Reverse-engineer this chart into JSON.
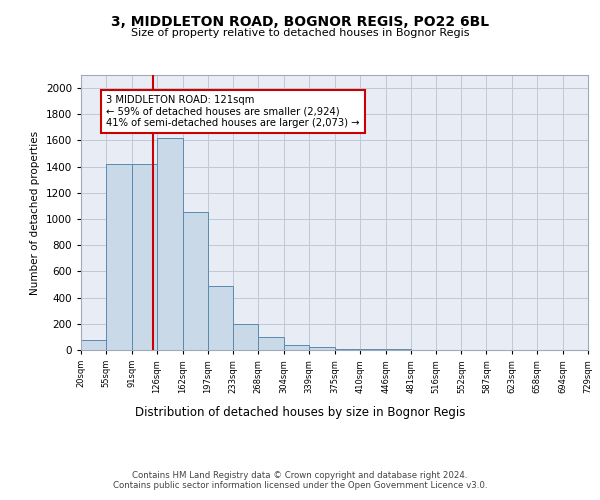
{
  "title1": "3, MIDDLETON ROAD, BOGNOR REGIS, PO22 6BL",
  "title2": "Size of property relative to detached houses in Bognor Regis",
  "xlabel": "Distribution of detached houses by size in Bognor Regis",
  "ylabel": "Number of detached properties",
  "bin_edges": [
    20,
    55,
    91,
    126,
    162,
    197,
    233,
    268,
    304,
    339,
    375,
    410,
    446,
    481,
    516,
    552,
    587,
    623,
    658,
    694,
    729
  ],
  "bar_heights": [
    80,
    1420,
    1420,
    1620,
    1050,
    490,
    200,
    100,
    35,
    25,
    10,
    5,
    5,
    3,
    2,
    1,
    1,
    0,
    0,
    0
  ],
  "bar_color": "#c9d9e8",
  "bar_edge_color": "#5a8ab0",
  "property_size": 121,
  "red_line_color": "#cc0000",
  "annotation_text": "3 MIDDLETON ROAD: 121sqm\n← 59% of detached houses are smaller (2,924)\n41% of semi-detached houses are larger (2,073) →",
  "annotation_box_color": "#ffffff",
  "annotation_border_color": "#cc0000",
  "ylim": [
    0,
    2100
  ],
  "yticks": [
    0,
    200,
    400,
    600,
    800,
    1000,
    1200,
    1400,
    1600,
    1800,
    2000
  ],
  "grid_color": "#c0c8d8",
  "background_color": "#e8edf5",
  "footer_text": "Contains HM Land Registry data © Crown copyright and database right 2024.\nContains public sector information licensed under the Open Government Licence v3.0.",
  "tick_labels": [
    "20sqm",
    "55sqm",
    "91sqm",
    "126sqm",
    "162sqm",
    "197sqm",
    "233sqm",
    "268sqm",
    "304sqm",
    "339sqm",
    "375sqm",
    "410sqm",
    "446sqm",
    "481sqm",
    "516sqm",
    "552sqm",
    "587sqm",
    "623sqm",
    "658sqm",
    "694sqm",
    "729sqm"
  ]
}
